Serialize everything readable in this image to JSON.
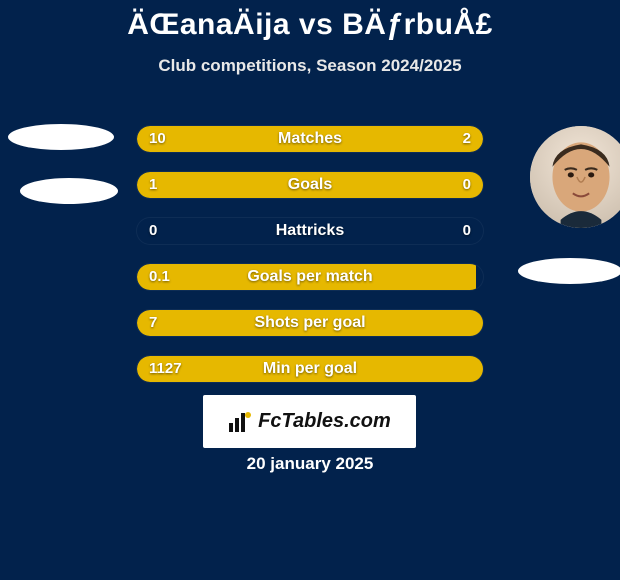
{
  "header": {
    "title": "ÄŒanaÄija vs BÄƒrbuÅ£",
    "subtitle": "Club competitions, Season 2024/2025"
  },
  "colors": {
    "background": "#02224c",
    "bar": "#e6b800",
    "text": "#ffffff"
  },
  "stats": {
    "bar_total_width": 346,
    "rows": [
      {
        "label": "Matches",
        "left": "10",
        "right": "2",
        "left_pct": 76,
        "right_pct": 24
      },
      {
        "label": "Goals",
        "left": "1",
        "right": "0",
        "left_pct": 100,
        "right_pct": 0
      },
      {
        "label": "Hattricks",
        "left": "0",
        "right": "0",
        "left_pct": 0,
        "right_pct": 0
      },
      {
        "label": "Goals per match",
        "left": "0.1",
        "right": "",
        "left_pct": 98,
        "right_pct": 0
      },
      {
        "label": "Shots per goal",
        "left": "7",
        "right": "",
        "left_pct": 100,
        "right_pct": 0
      },
      {
        "label": "Min per goal",
        "left": "1127",
        "right": "",
        "left_pct": 100,
        "right_pct": 0
      }
    ]
  },
  "footer": {
    "logo_text": "FcTables.com",
    "date": "20 january 2025"
  }
}
